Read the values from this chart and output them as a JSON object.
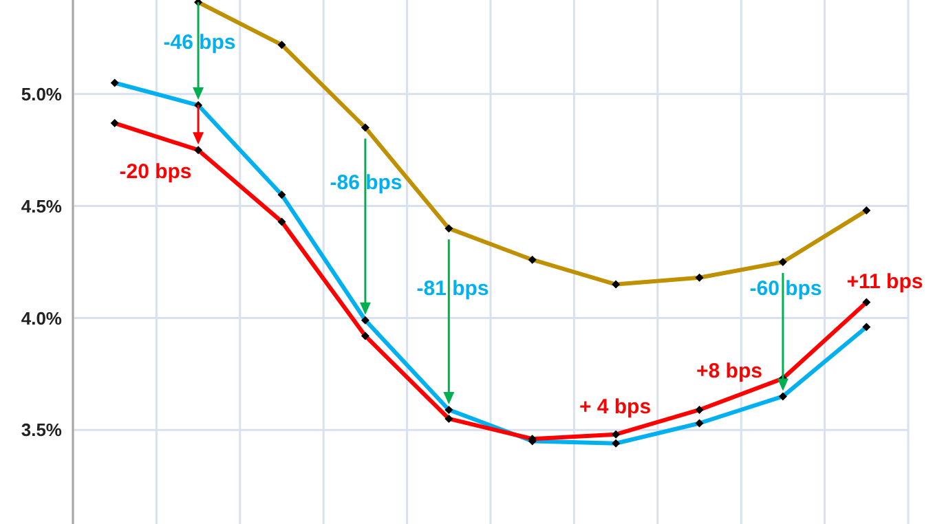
{
  "chart_data": {
    "type": "line",
    "categories": [
      null,
      null,
      null,
      null,
      null,
      null,
      null,
      null,
      null,
      null
    ],
    "series": [
      {
        "color": "#00b0f0",
        "values": [
          5.05,
          4.95,
          4.55,
          3.99,
          3.59,
          3.45,
          3.44,
          3.53,
          3.65,
          3.96
        ]
      },
      {
        "color": "#ff0000",
        "values": [
          4.87,
          4.75,
          4.43,
          3.92,
          3.55,
          3.46,
          3.48,
          3.59,
          3.73,
          4.07
        ]
      },
      {
        "color": "#bf9000",
        "values": [
          null,
          5.41,
          5.22,
          4.85,
          4.4,
          4.26,
          4.15,
          4.18,
          4.25,
          4.48
        ]
      }
    ],
    "ylim": [
      3.08,
      5.42
    ],
    "yticks": [
      {
        "value": 3.5,
        "label": "3.5%"
      },
      {
        "value": 4.0,
        "label": "4.0%"
      },
      {
        "value": 4.5,
        "label": "4.5%"
      },
      {
        "value": 5.0,
        "label": "5.0%"
      }
    ],
    "grid": true,
    "tick_labels": "y",
    "marker": "diamond",
    "line_style": "solid",
    "annotations": [
      "-46 bps",
      "-20 bps",
      "-86 bps",
      "-81 bps",
      "+ 4 bps",
      "+8 bps",
      "-60 bps",
      "+11 bps"
    ]
  }
}
